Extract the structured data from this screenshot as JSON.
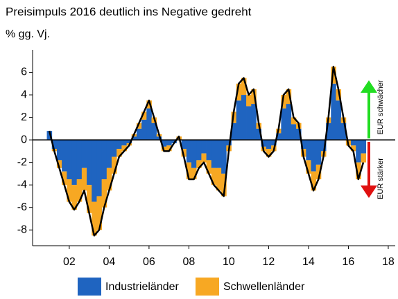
{
  "chart_data": {
    "type": "bar",
    "title": "Preisimpuls 2016 deutlich ins Negative gedreht",
    "subtitle": "% gg. Vj.",
    "annotations": [
      {
        "text": "EUR schwächer",
        "color": "#22dd22"
      },
      {
        "text": "EUR stärker",
        "color": "#e01010"
      }
    ],
    "x": [
      2001.0,
      2001.25,
      2001.5,
      2001.75,
      2002.0,
      2002.25,
      2002.5,
      2002.75,
      2003.0,
      2003.25,
      2003.5,
      2003.75,
      2004.0,
      2004.25,
      2004.5,
      2004.75,
      2005.0,
      2005.25,
      2005.5,
      2005.75,
      2006.0,
      2006.25,
      2006.5,
      2006.75,
      2007.0,
      2007.25,
      2007.5,
      2007.75,
      2008.0,
      2008.25,
      2008.5,
      2008.75,
      2009.0,
      2009.25,
      2009.5,
      2009.75,
      2010.0,
      2010.25,
      2010.5,
      2010.75,
      2011.0,
      2011.25,
      2011.5,
      2011.75,
      2012.0,
      2012.25,
      2012.5,
      2012.75,
      2013.0,
      2013.25,
      2013.5,
      2013.75,
      2014.0,
      2014.25,
      2014.5,
      2014.75,
      2015.0,
      2015.25,
      2015.5,
      2015.75,
      2016.0,
      2016.25,
      2016.5,
      2016.75
    ],
    "series": [
      {
        "name": "Industrieländer",
        "color": "#1f64c0",
        "values": [
          0.8,
          -0.8,
          -1.8,
          -2.8,
          -3.5,
          -4,
          -3.5,
          -2.5,
          -4,
          -5.5,
          -5,
          -3.5,
          -2.5,
          -1.5,
          -0.8,
          -0.5,
          -0.3,
          0.3,
          1,
          1.8,
          2.8,
          1.5,
          0.3,
          -0.6,
          -0.5,
          -0.3,
          0,
          -0.8,
          -2,
          -2.5,
          -1.8,
          -1.2,
          -1.8,
          -2.5,
          -2.5,
          -3,
          -0.5,
          1.5,
          3.5,
          4,
          3,
          3.2,
          1,
          -0.6,
          -0.8,
          -0.5,
          0.6,
          2.8,
          3.2,
          1.4,
          1,
          -0.8,
          -1.8,
          -2.8,
          -2.2,
          -1,
          1.5,
          5,
          3.5,
          1.5,
          0,
          -0.5,
          -2,
          -1.2
        ]
      },
      {
        "name": "Schwellenländer",
        "color": "#f7a823",
        "values": [
          0,
          -0.2,
          -0.7,
          -1.2,
          -2,
          -2.2,
          -2,
          -2,
          -2.5,
          -3,
          -3,
          -2.5,
          -2,
          -1.5,
          -0.7,
          -0.5,
          -0.2,
          0.2,
          0.5,
          0.7,
          0.7,
          0.5,
          0.2,
          -0.4,
          -0.5,
          0,
          0.3,
          -0.7,
          -1.5,
          -1,
          -0.7,
          -0.8,
          -1.2,
          -1.5,
          -2,
          -2,
          -0.5,
          1,
          1.5,
          1.5,
          1,
          1.3,
          0.5,
          -0.4,
          -0.7,
          -0.5,
          0.4,
          1.2,
          1.3,
          0.6,
          0.5,
          -0.7,
          -1.2,
          -1.7,
          -1.3,
          -0.5,
          0.5,
          1.5,
          1,
          0.5,
          -0.5,
          -0.5,
          -1.5,
          -0.8
        ]
      }
    ],
    "line": {
      "color": "#000000",
      "values": [
        0.8,
        -1,
        -2.5,
        -4,
        -5.5,
        -6.2,
        -5.5,
        -4.5,
        -6.5,
        -8.5,
        -8,
        -6,
        -4.5,
        -3,
        -1.5,
        -1,
        -0.5,
        0.5,
        1.5,
        2.5,
        3.5,
        2,
        0.5,
        -1,
        -1,
        -0.3,
        0.3,
        -1.5,
        -3.5,
        -3.5,
        -2.5,
        -2,
        -3,
        -4,
        -4.5,
        -5,
        -1,
        2.5,
        5,
        5.5,
        4,
        4.5,
        1.5,
        -1,
        -1.5,
        -1,
        1,
        4,
        4.5,
        2,
        1.5,
        -1.5,
        -3,
        -4.5,
        -3.5,
        -1.5,
        2,
        6.5,
        4.5,
        2,
        -0.5,
        -1,
        -3.5,
        -2
      ]
    },
    "xlim": [
      2000.16,
      2018.35
    ],
    "xticks": [
      {
        "value": 2002,
        "label": "02"
      },
      {
        "value": 2004,
        "label": "04"
      },
      {
        "value": 2006,
        "label": "06"
      },
      {
        "value": 2008,
        "label": "08"
      },
      {
        "value": 2010,
        "label": "10"
      },
      {
        "value": 2012,
        "label": "12"
      },
      {
        "value": 2014,
        "label": "14"
      },
      {
        "value": 2016,
        "label": "16"
      },
      {
        "value": 2018,
        "label": "18"
      }
    ],
    "ylim": [
      -9.4,
      8
    ],
    "yticks": [
      -8,
      -6,
      -4,
      -2,
      0,
      2,
      4,
      6
    ],
    "bar_width": 0.25
  }
}
